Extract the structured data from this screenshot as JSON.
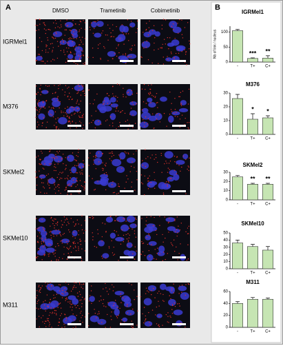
{
  "figure": {
    "panel_a": "A",
    "panel_b": "B",
    "columns": [
      "DMSO",
      "Trametinib",
      "Cobimetinib"
    ],
    "rows": [
      "IGRMel1",
      "M376",
      "SKMel2",
      "SKMel10",
      "M311"
    ]
  },
  "chart_data": [
    {
      "type": "bar",
      "title": "IGRMel1",
      "y_label": "Nb of link / nucleus",
      "categories": [
        "-",
        "T+",
        "C+"
      ],
      "values": [
        105,
        12,
        13
      ],
      "errors": [
        4,
        2,
        8
      ],
      "annotations": [
        null,
        "***",
        "**"
      ],
      "ylim": [
        0,
        120
      ],
      "yticks": [
        0,
        50,
        100
      ],
      "color": "#c6e5b3"
    },
    {
      "type": "bar",
      "title": "M376",
      "categories": [
        "-",
        "T+",
        "C+"
      ],
      "values": [
        26,
        11,
        12
      ],
      "errors": [
        3,
        4,
        1.5
      ],
      "annotations": [
        null,
        "*",
        "*"
      ],
      "ylim": [
        0,
        30
      ],
      "yticks": [
        0,
        10,
        20,
        30
      ],
      "color": "#c6e5b3"
    },
    {
      "type": "bar",
      "title": "SKMel2",
      "categories": [
        "-",
        "T+",
        "C+"
      ],
      "values": [
        25,
        17,
        17
      ],
      "errors": [
        1.5,
        1,
        1
      ],
      "annotations": [
        null,
        "**",
        "**"
      ],
      "ylim": [
        0,
        30
      ],
      "yticks": [
        0,
        10,
        20,
        30
      ],
      "color": "#c6e5b3"
    },
    {
      "type": "bar",
      "title": "SKMel10",
      "categories": [
        "-",
        "T+",
        "C+"
      ],
      "values": [
        36,
        31,
        26
      ],
      "errors": [
        4,
        3,
        5
      ],
      "annotations": [
        null,
        null,
        null
      ],
      "ylim": [
        0,
        50
      ],
      "yticks": [
        0,
        10,
        20,
        30,
        40,
        50
      ],
      "color": "#c6e5b3"
    },
    {
      "type": "bar",
      "title": "M311",
      "categories": [
        "-",
        "T+",
        "C+"
      ],
      "values": [
        40,
        47,
        47
      ],
      "errors": [
        3,
        3,
        2
      ],
      "annotations": [
        null,
        null,
        null
      ],
      "ylim": [
        0,
        60
      ],
      "yticks": [
        0,
        20,
        40,
        60
      ],
      "color": "#c6e5b3"
    }
  ]
}
